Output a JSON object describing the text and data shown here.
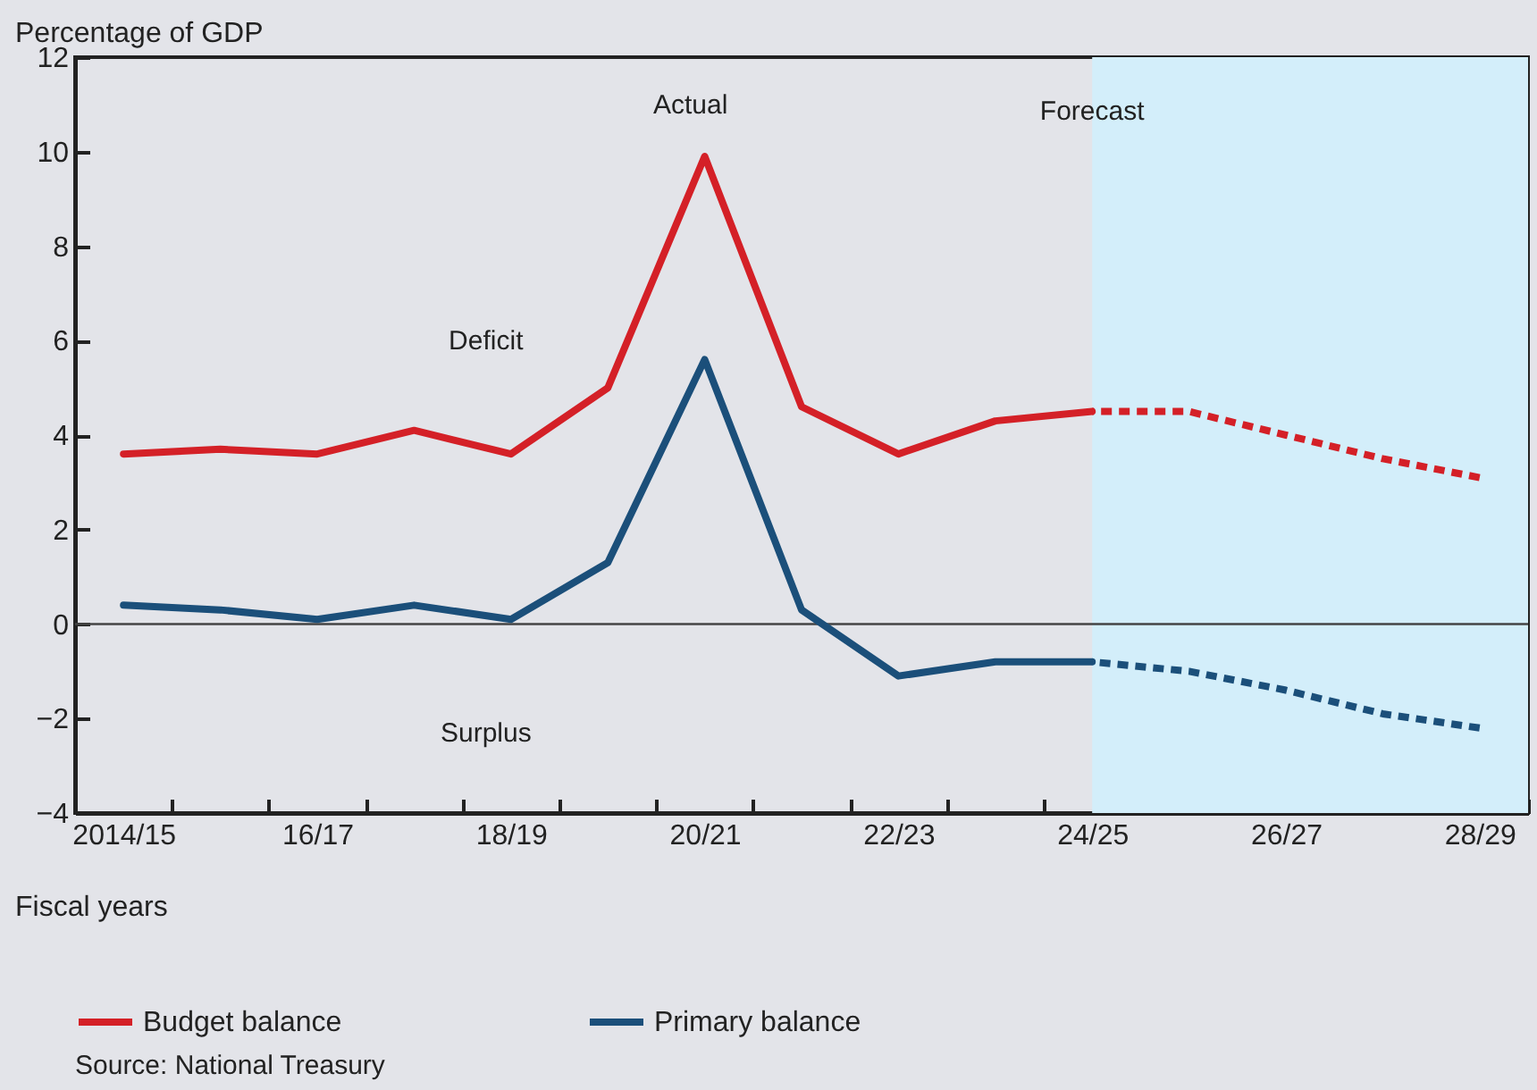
{
  "chart_data": {
    "type": "line",
    "ylabel": "Percentage of GDP",
    "xlabel": "Fiscal years",
    "categories": [
      "2014/15",
      null,
      "16/17",
      null,
      "18/19",
      null,
      "20/21",
      null,
      "22/23",
      null,
      "24/25",
      null,
      "26/27",
      null,
      "28/29"
    ],
    "series": [
      {
        "name": "Budget balance",
        "color": "#d42027",
        "line_style": "solid",
        "values": [
          3.6,
          3.7,
          3.6,
          4.1,
          3.6,
          5.0,
          9.9,
          4.6,
          3.6,
          4.3,
          4.5,
          null,
          null,
          null,
          null
        ]
      },
      {
        "color": "#d42027",
        "line_style": "dashed",
        "values": [
          null,
          null,
          null,
          null,
          null,
          null,
          null,
          null,
          null,
          null,
          4.5,
          4.5,
          4.0,
          3.5,
          3.1
        ]
      },
      {
        "name": "Primary balance",
        "color": "#1b4f7a",
        "line_style": "solid",
        "values": [
          0.4,
          0.3,
          0.1,
          0.4,
          0.1,
          1.3,
          5.6,
          0.3,
          -1.1,
          -0.8,
          -0.8,
          null,
          null,
          null,
          null
        ]
      },
      {
        "color": "#1b4f7a",
        "line_style": "dashed",
        "values": [
          null,
          null,
          null,
          null,
          null,
          null,
          null,
          null,
          null,
          null,
          -0.8,
          -1.0,
          -1.4,
          -1.9,
          -2.2
        ]
      }
    ],
    "ylim": [
      -4,
      12
    ],
    "yticks": [
      -4,
      -2,
      0,
      2,
      4,
      6,
      8,
      10,
      12
    ],
    "ref_lines": [
      {
        "axis": "y",
        "value": 0,
        "color": "#444444"
      }
    ],
    "bands": [
      {
        "axis": "x",
        "from": "24/25",
        "to": "28/29",
        "label": "Forecast",
        "color": "#d3eefa"
      }
    ],
    "annotations": [
      "Actual",
      "Deficit",
      "Surplus",
      "Source: National Treasury"
    ],
    "legend": "bottom left",
    "grid": false
  }
}
